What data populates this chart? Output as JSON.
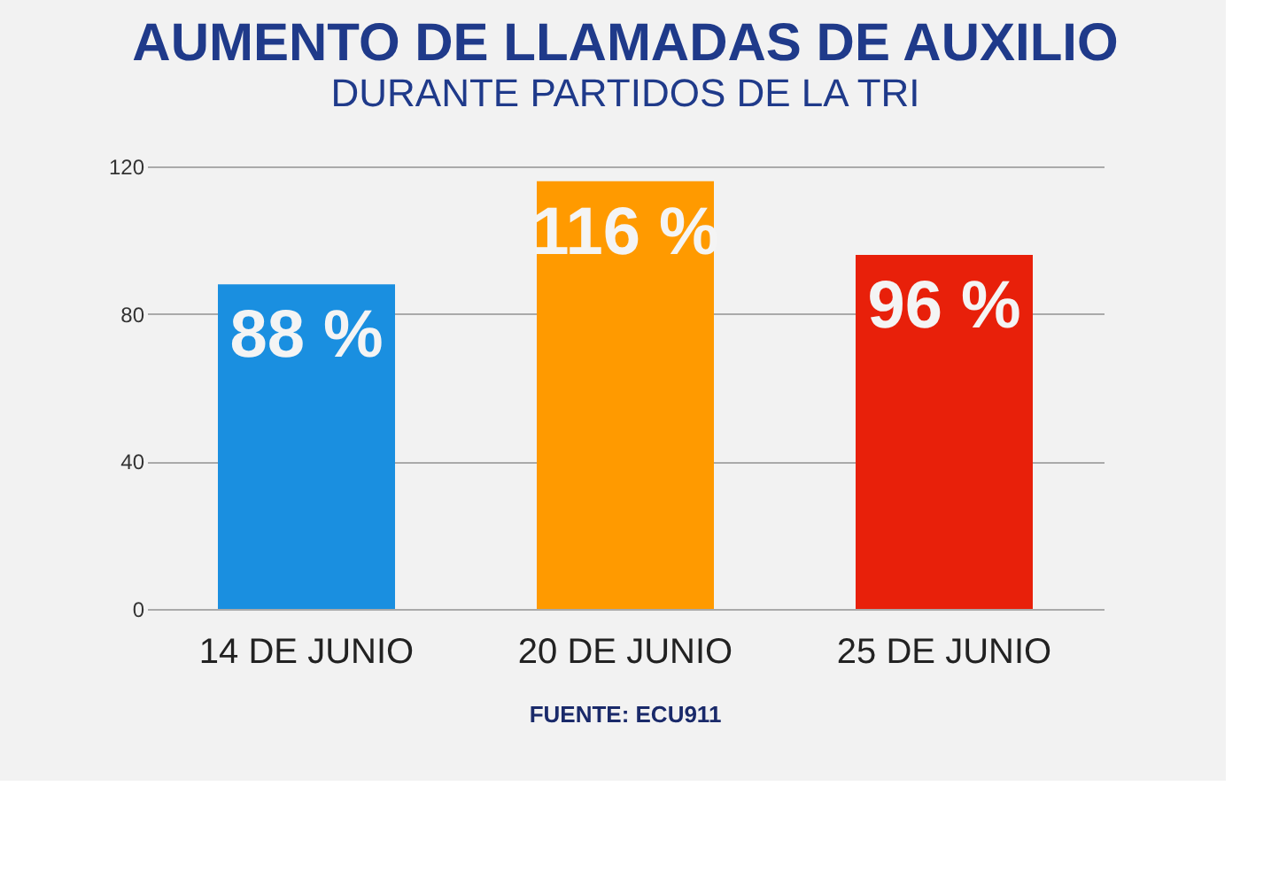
{
  "chart_data": {
    "type": "bar",
    "title": "AUMENTO DE LLAMADAS DE AUXILIO",
    "subtitle": "DURANTE PARTIDOS DE LA TRI",
    "categories": [
      "14 DE JUNIO",
      "20 DE JUNIO",
      "25 DE JUNIO"
    ],
    "values": [
      88,
      116,
      96
    ],
    "value_labels": [
      "88 %",
      "116 %",
      "96 %"
    ],
    "colors": [
      "#1a8fe0",
      "#ff9a00",
      "#e8200a"
    ],
    "ylim": [
      0,
      120
    ],
    "yticks": [
      0,
      40,
      80,
      120
    ],
    "grid": "y",
    "annotations": [
      "FUENTE: ECU911"
    ]
  }
}
